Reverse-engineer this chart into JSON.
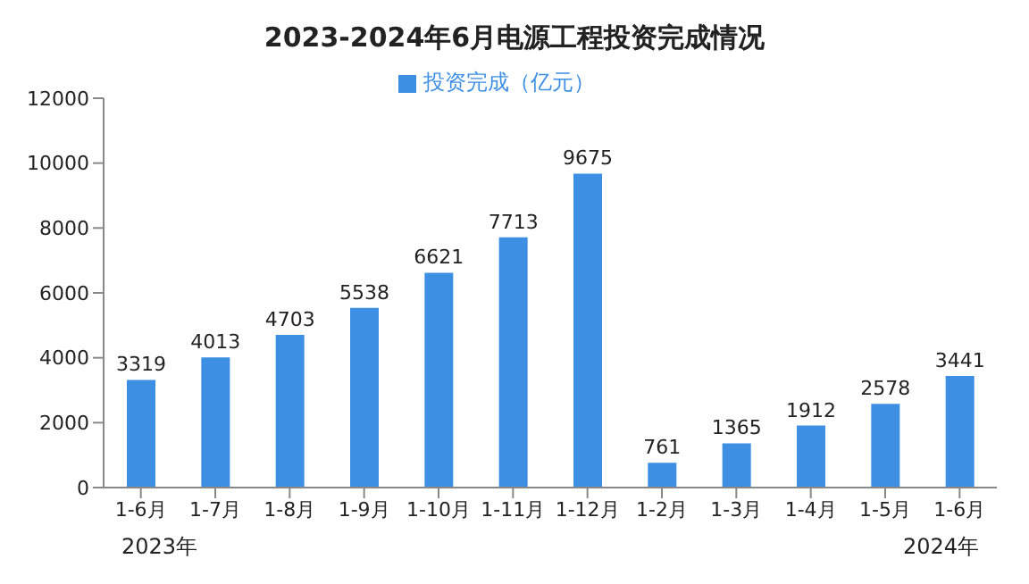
{
  "chart_data": {
    "type": "bar",
    "title": "2023-2024年6月电源工程投资完成情况",
    "categories": [
      "1-6月",
      "1-7月",
      "1-8月",
      "1-9月",
      "1-10月",
      "1-11月",
      "1-12月",
      "1-2月",
      "1-3月",
      "1-4月",
      "1-5月",
      "1-6月"
    ],
    "series": [
      {
        "name": "投资完成（亿元）",
        "color": "#3d8fe3",
        "values": [
          3319,
          4013,
          4703,
          5538,
          6621,
          7713,
          9675,
          761,
          1365,
          1912,
          2578,
          3441
        ]
      }
    ],
    "ylim": [
      0,
      12000
    ],
    "yticks": [
      0,
      2000,
      4000,
      6000,
      8000,
      10000,
      12000
    ],
    "grid": false,
    "legend": "top",
    "data_labels": true,
    "annotations": [
      "2023年",
      "2024年"
    ]
  }
}
